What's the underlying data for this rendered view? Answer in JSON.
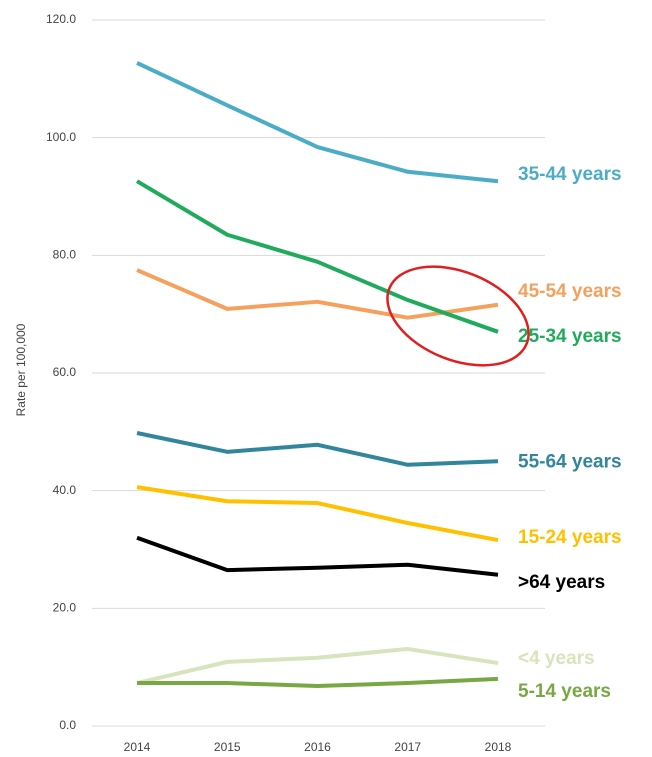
{
  "chart_data": {
    "type": "line",
    "y_label": "Rate per 100,000",
    "x": [
      "2014",
      "2015",
      "2016",
      "2017",
      "2018"
    ],
    "ylim": [
      0,
      120
    ],
    "yticks": [
      {
        "value": 0,
        "label": "0.0"
      },
      {
        "value": 20,
        "label": "20.0"
      },
      {
        "value": 40,
        "label": "40.0"
      },
      {
        "value": 60,
        "label": "60.0"
      },
      {
        "value": 80,
        "label": "80.0"
      },
      {
        "value": 100,
        "label": "100.0"
      },
      {
        "value": 120,
        "label": "120.0"
      }
    ],
    "grid": true,
    "series": [
      {
        "name": "35-44 years",
        "color": "#4bacc6",
        "values": [
          112.7,
          105.5,
          98.4,
          94.2,
          92.6
        ]
      },
      {
        "name": "45-54 years",
        "color": "#f4a15d",
        "values": [
          77.5,
          70.9,
          72.1,
          69.4,
          71.6
        ]
      },
      {
        "name": "25-34 years",
        "color": "#1fab5b",
        "values": [
          92.6,
          83.5,
          78.9,
          72.4,
          67.0
        ]
      },
      {
        "name": "55-64 years",
        "color": "#31859c",
        "values": [
          49.8,
          46.6,
          47.8,
          44.4,
          45.0
        ]
      },
      {
        "name": "15-24 years",
        "color": "#ffc000",
        "values": [
          40.6,
          38.2,
          37.9,
          34.5,
          31.6
        ]
      },
      {
        "name": ">64 years",
        "color": "#000000",
        "values": [
          32.0,
          26.5,
          26.9,
          27.4,
          25.7
        ]
      },
      {
        "name": "<4 years",
        "color": "#d7e4bd",
        "values": [
          7.3,
          10.9,
          11.6,
          13.1,
          10.7
        ]
      },
      {
        "name": "5-14 years",
        "color": "#77a844",
        "values": [
          7.3,
          7.3,
          6.8,
          7.3,
          8.0
        ]
      }
    ]
  }
}
